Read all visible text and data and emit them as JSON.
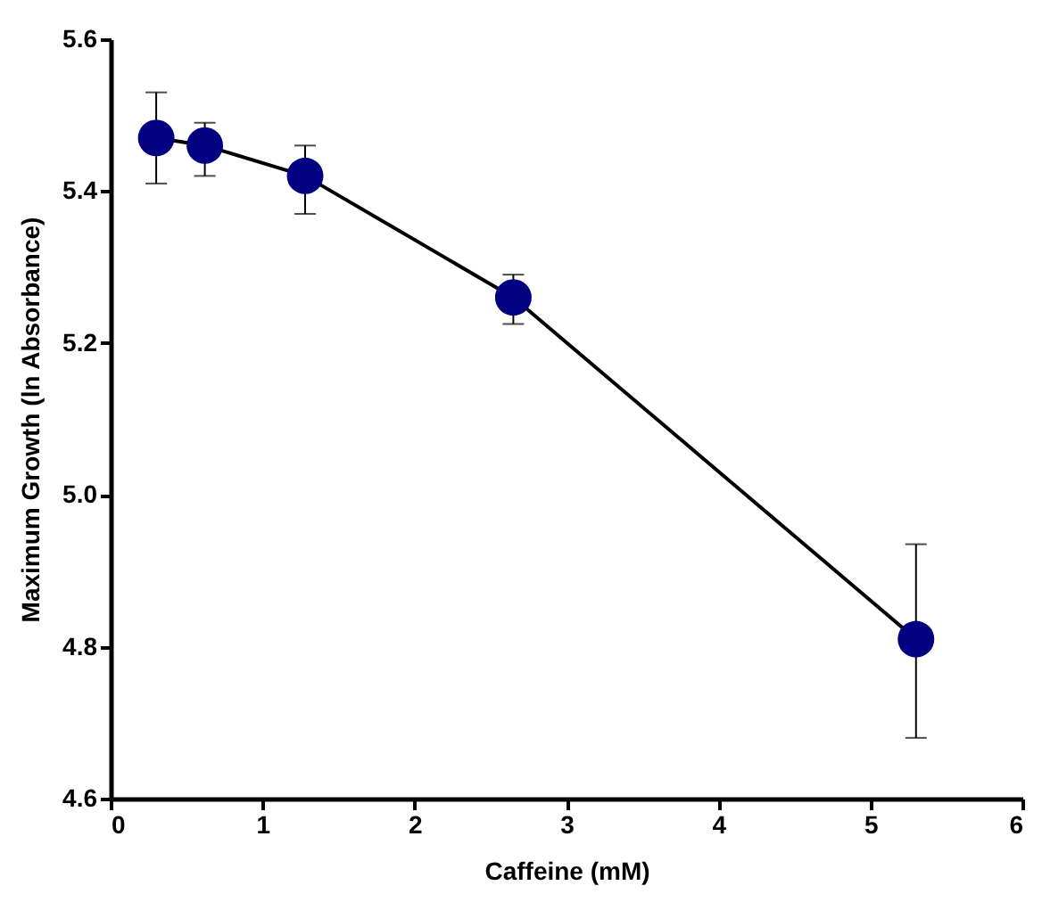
{
  "chart_data": {
    "type": "line",
    "xlabel": "Caffeine (mM)",
    "ylabel": "Maximum Growth (ln Absorbance)",
    "x": [
      0.3,
      0.62,
      1.28,
      2.65,
      5.3
    ],
    "series": [
      {
        "color": "#000080",
        "values": [
          5.47,
          5.46,
          5.42,
          5.26,
          4.81
        ],
        "errors": [
          [
            5.41,
            5.53
          ],
          [
            5.42,
            5.49
          ],
          [
            5.37,
            5.46
          ],
          [
            5.225,
            5.29
          ],
          [
            4.68,
            4.935
          ]
        ]
      }
    ],
    "xlim": [
      0,
      6
    ],
    "xticks": [
      0,
      1,
      2,
      3,
      4,
      5,
      6
    ],
    "ylim": [
      4.6,
      5.6
    ],
    "yticks": [
      4.6,
      4.8,
      {
        "value": 5.0,
        "label": "5.0"
      },
      5.2,
      5.4,
      5.6
    ],
    "marker": "circle",
    "line_style": "solid"
  }
}
